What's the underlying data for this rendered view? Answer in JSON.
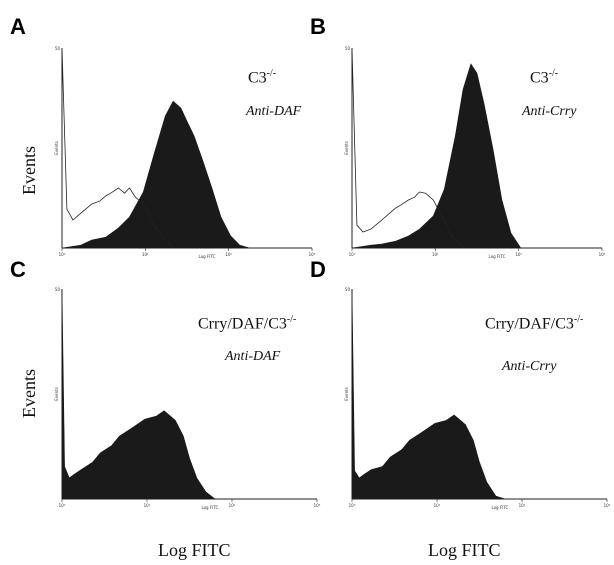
{
  "panels": [
    {
      "letter": "A",
      "genotype": "C3",
      "genotype_sup": "-/-",
      "antibody": "Anti-DAF",
      "inner_ylabel": "Events",
      "inner_xlabel": "Log FITC",
      "ymax_label": "50",
      "xticks": [
        "10⁰",
        "10¹",
        "10²",
        "10³"
      ]
    },
    {
      "letter": "B",
      "genotype": "C3",
      "genotype_sup": "-/-",
      "antibody": "Anti-Crry",
      "inner_ylabel": "Events",
      "inner_xlabel": "Log FITC",
      "ymax_label": "50",
      "xticks": [
        "10⁰",
        "10¹",
        "10²",
        "10³"
      ]
    },
    {
      "letter": "C",
      "genotype": "Crry/DAF/C3",
      "genotype_sup": "-/-",
      "antibody": "Anti-DAF",
      "inner_ylabel": "Events",
      "inner_xlabel": "Log FITC",
      "ymax_label": "50",
      "xticks": [
        "10⁰",
        "10¹",
        "10²",
        "10³"
      ]
    },
    {
      "letter": "D",
      "genotype": "Crry/DAF/C3",
      "genotype_sup": "-/-",
      "antibody": "Anti-Crry",
      "inner_ylabel": "Events",
      "inner_xlabel": "Log FITC",
      "ymax_label": "50",
      "xticks": [
        "10⁰",
        "10¹",
        "10²",
        "10³"
      ]
    }
  ],
  "row_labels": {
    "top": "Events",
    "bottom": "Events"
  },
  "col_labels": {
    "left": "Log FITC",
    "right": "Log FITC"
  },
  "colors": {
    "filled": "#1a1a1a",
    "outline": "#222222"
  },
  "chart_data": [
    {
      "type": "area",
      "panel": "A",
      "xscale": "log",
      "xlim": [
        1,
        10000
      ],
      "ylim": [
        0,
        50
      ],
      "series": [
        {
          "style": "filled",
          "x": [
            1,
            2,
            3,
            5,
            8,
            12,
            20,
            30,
            45,
            60,
            80,
            100,
            130,
            180,
            250,
            350,
            500,
            700,
            1000
          ],
          "y": [
            0,
            1,
            2,
            3,
            5,
            8,
            14,
            24,
            33,
            37,
            35,
            32,
            28,
            22,
            15,
            8,
            3,
            1,
            0
          ]
        },
        {
          "style": "outline",
          "x": [
            1,
            1.2,
            1.5,
            2,
            3,
            4,
            5,
            6,
            8,
            10,
            12,
            15,
            20,
            30,
            40,
            60
          ],
          "y": [
            50,
            10,
            7,
            9,
            11,
            12,
            13,
            14,
            15,
            14,
            15,
            13,
            11,
            6,
            3,
            0
          ]
        }
      ]
    },
    {
      "type": "area",
      "panel": "B",
      "xscale": "log",
      "xlim": [
        1,
        10000
      ],
      "ylim": [
        0,
        50
      ],
      "series": [
        {
          "style": "filled",
          "x": [
            1,
            2,
            3,
            5,
            8,
            12,
            20,
            30,
            45,
            60,
            80,
            100,
            130,
            180,
            250,
            350,
            500
          ],
          "y": [
            0,
            1,
            1,
            2,
            3,
            5,
            8,
            15,
            28,
            40,
            46,
            44,
            36,
            25,
            12,
            4,
            0
          ]
        },
        {
          "style": "outline",
          "x": [
            1,
            1.2,
            1.5,
            2,
            3,
            4,
            5,
            6,
            8,
            10,
            12,
            15,
            20,
            30,
            40,
            60
          ],
          "y": [
            50,
            6,
            4,
            5,
            7,
            9,
            10,
            11,
            12,
            13,
            14,
            14,
            12,
            7,
            3,
            0
          ]
        }
      ]
    },
    {
      "type": "area",
      "panel": "C",
      "xscale": "log",
      "xlim": [
        1,
        10000
      ],
      "ylim": [
        0,
        50
      ],
      "series": [
        {
          "style": "filled",
          "x": [
            1,
            1.1,
            1.3,
            1.5,
            2,
            3,
            4,
            6,
            8,
            12,
            20,
            30,
            40,
            60,
            80,
            100,
            130,
            180,
            250
          ],
          "y": [
            50,
            8,
            5,
            6,
            7,
            9,
            11,
            13,
            15,
            17,
            19,
            20,
            21,
            19,
            15,
            10,
            5,
            2,
            0
          ]
        }
      ]
    },
    {
      "type": "area",
      "panel": "D",
      "xscale": "log",
      "xlim": [
        1,
        10000
      ],
      "ylim": [
        0,
        50
      ],
      "series": [
        {
          "style": "filled",
          "x": [
            1,
            1.1,
            1.3,
            1.5,
            2,
            3,
            4,
            6,
            8,
            12,
            20,
            30,
            40,
            60,
            80,
            100,
            130,
            180,
            250
          ],
          "y": [
            50,
            7,
            5,
            6,
            7,
            8,
            10,
            12,
            14,
            16,
            18,
            19,
            20,
            18,
            14,
            9,
            4,
            1,
            0
          ]
        }
      ]
    }
  ]
}
